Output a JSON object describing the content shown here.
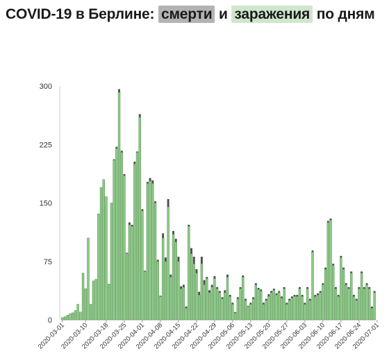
{
  "title": {
    "part1": "COVID-19 в Берлине: ",
    "deaths_label": "смерти",
    "part2": " и ",
    "cases_label": "заражения",
    "part3": " по дням"
  },
  "colors": {
    "cases": "#8fc88a",
    "cases_stroke": "#4f8f4a",
    "deaths": "#4d4d4d",
    "axis": "#cccccc"
  },
  "chart_data": {
    "type": "bar",
    "stacked": true,
    "start_date": "2020-03-01",
    "series": [
      {
        "name": "заражения",
        "values": [
          3,
          4,
          6,
          8,
          9,
          12,
          20,
          10,
          60,
          40,
          105,
          20,
          50,
          52,
          136,
          170,
          180,
          158,
          46,
          150,
          205,
          220,
          292,
          215,
          185,
          85,
          122,
          120,
          200,
          215,
          260,
          140,
          62,
          175,
          178,
          175,
          150,
          75,
          30,
          105,
          75,
          145,
          55,
          110,
          100,
          75,
          40,
          42,
          15,
          120,
          85,
          72,
          60,
          32,
          72,
          45,
          53,
          35,
          42,
          53,
          40,
          35,
          27,
          35,
          55,
          30,
          20,
          9,
          27,
          40,
          55,
          25,
          17,
          20,
          27,
          45,
          39,
          37,
          20,
          25,
          30,
          35,
          38,
          32,
          35,
          28,
          40,
          20,
          25,
          28,
          30,
          30,
          40,
          30,
          20,
          40,
          25,
          87,
          30,
          32,
          35,
          45,
          65,
          125,
          128,
          70,
          40,
          30,
          80,
          65,
          45,
          40,
          60,
          30,
          25,
          40,
          60,
          40,
          45,
          40,
          15,
          35
        ],
        "color": "#8fc88a"
      },
      {
        "name": "смерти",
        "values": [
          0,
          0,
          0,
          0,
          0,
          0,
          0,
          0,
          0,
          0,
          0,
          0,
          0,
          0,
          0,
          0,
          0,
          0,
          0,
          0,
          1,
          2,
          4,
          2,
          2,
          1,
          3,
          2,
          3,
          1,
          4,
          2,
          1,
          2,
          4,
          4,
          2,
          2,
          1,
          6,
          5,
          10,
          3,
          4,
          4,
          6,
          3,
          3,
          2,
          2,
          7,
          9,
          5,
          4,
          9,
          6,
          2,
          3,
          3,
          3,
          2,
          2,
          2,
          3,
          3,
          2,
          2,
          1,
          2,
          2,
          2,
          2,
          1,
          2,
          2,
          2,
          2,
          2,
          2,
          2,
          3,
          2,
          2,
          2,
          2,
          2,
          2,
          2,
          2,
          2,
          2,
          2,
          2,
          2,
          2,
          2,
          2,
          2,
          2,
          2,
          2,
          2,
          2,
          2,
          2,
          2,
          2,
          2,
          2,
          2,
          2,
          2,
          2,
          2,
          2,
          2,
          2,
          2,
          2,
          2,
          2,
          2
        ],
        "color": "#4d4d4d"
      }
    ],
    "yticks": [
      "0",
      "75",
      "150",
      "225",
      "300"
    ],
    "ylim": [
      0,
      300
    ],
    "xtick_labels": [
      "2020-03-01",
      "2020-03-10",
      "2020-03-18",
      "2020-03-25",
      "2020-04-01",
      "2020-04-08",
      "2020-04-15",
      "2020-04-22",
      "2020-04-29",
      "2020-05-06",
      "2020-05-13",
      "2020-05-20",
      "2020-05-27",
      "2020-06-03",
      "2020-06-10",
      "2020-06-17",
      "2020-06-24",
      "2020-07-01"
    ],
    "xtick_days": [
      0,
      9,
      17,
      24,
      31,
      38,
      45,
      52,
      59,
      66,
      73,
      80,
      87,
      94,
      101,
      108,
      115,
      122
    ],
    "grid": false,
    "legend": "in title"
  }
}
